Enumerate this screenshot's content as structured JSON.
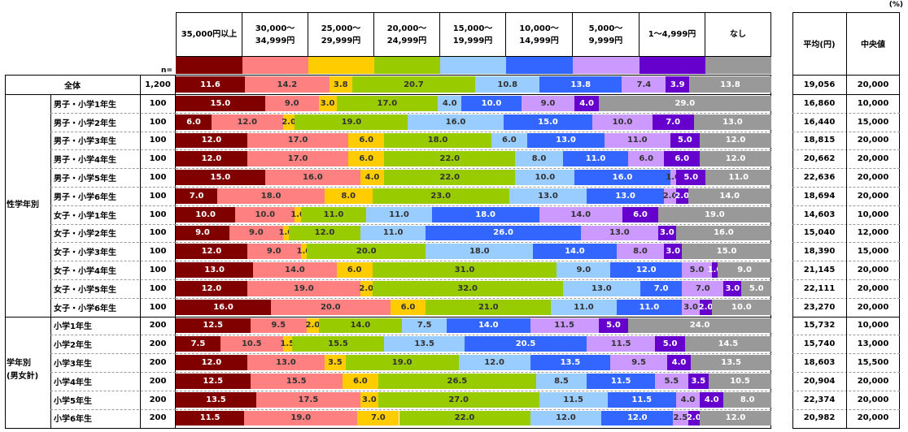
{
  "chart_data": {
    "type": "bar",
    "orientation": "horizontal-stacked-100",
    "unit_label": "(%)",
    "n_label": "n=",
    "categories_header": [
      "35,000円以上",
      "30,000〜\n34,999円",
      "25,000〜\n29,999円",
      "20,000〜\n24,999円",
      "15,000〜\n19,999円",
      "10,000〜\n14,999円",
      "5,000〜\n9,999円",
      "1〜4,999円",
      "なし"
    ],
    "colors": [
      "#800000",
      "#ff8080",
      "#ffcc00",
      "#99cc00",
      "#99ccff",
      "#3366ff",
      "#cc99ff",
      "#6600cc",
      "#999999"
    ],
    "label_colors": [
      "#ffffff",
      "#333333",
      "#333333",
      "#333333",
      "#333333",
      "#ffffff",
      "#333333",
      "#ffffff",
      "#ffffff"
    ],
    "stats_header": [
      "平均(円)",
      "中央値"
    ],
    "groups": [
      {
        "label": "",
        "span": 1
      },
      {
        "label": "性学年別",
        "span": 12
      },
      {
        "label": "学年別\n(男女計)",
        "span": 6
      }
    ],
    "rows": [
      {
        "label": "全体",
        "n": "1,200",
        "values": [
          11.6,
          14.2,
          3.8,
          20.7,
          10.8,
          13.8,
          7.4,
          3.9,
          13.8
        ],
        "mean": "19,056",
        "median": "20,000"
      },
      {
        "label": "男子・小学1年生",
        "n": "100",
        "values": [
          15.0,
          9.0,
          3.0,
          17.0,
          4.0,
          10.0,
          9.0,
          4.0,
          29.0
        ],
        "mean": "16,860",
        "median": "10,000"
      },
      {
        "label": "男子・小学2年生",
        "n": "100",
        "values": [
          6.0,
          12.0,
          2.0,
          19.0,
          16.0,
          15.0,
          10.0,
          7.0,
          13.0
        ],
        "mean": "16,440",
        "median": "15,000"
      },
      {
        "label": "男子・小学3年生",
        "n": "100",
        "values": [
          12.0,
          17.0,
          6.0,
          18.0,
          6.0,
          13.0,
          11.0,
          5.0,
          12.0
        ],
        "mean": "18,815",
        "median": "20,000"
      },
      {
        "label": "男子・小学4年生",
        "n": "100",
        "values": [
          12.0,
          17.0,
          6.0,
          22.0,
          8.0,
          11.0,
          6.0,
          6.0,
          12.0
        ],
        "mean": "20,662",
        "median": "20,000"
      },
      {
        "label": "男子・小学5年生",
        "n": "100",
        "values": [
          15.0,
          16.0,
          4.0,
          22.0,
          10.0,
          16.0,
          1.0,
          5.0,
          11.0
        ],
        "mean": "22,636",
        "median": "20,000"
      },
      {
        "label": "男子・小学6年生",
        "n": "100",
        "values": [
          7.0,
          18.0,
          8.0,
          23.0,
          13.0,
          13.0,
          2.0,
          2.0,
          14.0
        ],
        "mean": "18,694",
        "median": "20,000"
      },
      {
        "label": "女子・小学1年生",
        "n": "100",
        "values": [
          10.0,
          10.0,
          1.0,
          11.0,
          11.0,
          18.0,
          14.0,
          6.0,
          19.0
        ],
        "mean": "14,603",
        "median": "10,000"
      },
      {
        "label": "女子・小学2年生",
        "n": "100",
        "values": [
          9.0,
          9.0,
          1.0,
          12.0,
          11.0,
          26.0,
          13.0,
          3.0,
          16.0
        ],
        "mean": "15,040",
        "median": "12,000"
      },
      {
        "label": "女子・小学3年生",
        "n": "100",
        "values": [
          12.0,
          9.0,
          1.0,
          20.0,
          18.0,
          14.0,
          8.0,
          3.0,
          15.0
        ],
        "mean": "18,390",
        "median": "15,000"
      },
      {
        "label": "女子・小学4年生",
        "n": "100",
        "values": [
          13.0,
          14.0,
          6.0,
          31.0,
          9.0,
          12.0,
          5.0,
          1.0,
          9.0
        ],
        "mean": "21,145",
        "median": "20,000"
      },
      {
        "label": "女子・小学5年生",
        "n": "100",
        "values": [
          12.0,
          19.0,
          2.0,
          32.0,
          13.0,
          7.0,
          7.0,
          3.0,
          5.0
        ],
        "mean": "22,111",
        "median": "20,000"
      },
      {
        "label": "女子・小学6年生",
        "n": "100",
        "values": [
          16.0,
          20.0,
          6.0,
          21.0,
          11.0,
          11.0,
          3.0,
          2.0,
          10.0
        ],
        "mean": "23,270",
        "median": "20,000"
      },
      {
        "label": "小学1年生",
        "n": "200",
        "values": [
          12.5,
          9.5,
          2.0,
          14.0,
          7.5,
          14.0,
          11.5,
          5.0,
          24.0
        ],
        "mean": "15,732",
        "median": "10,000"
      },
      {
        "label": "小学2年生",
        "n": "200",
        "values": [
          7.5,
          10.5,
          1.5,
          15.5,
          13.5,
          20.5,
          11.5,
          5.0,
          14.5
        ],
        "mean": "15,740",
        "median": "13,000"
      },
      {
        "label": "小学3年生",
        "n": "200",
        "values": [
          12.0,
          13.0,
          3.5,
          19.0,
          12.0,
          13.5,
          9.5,
          4.0,
          13.5
        ],
        "mean": "18,603",
        "median": "15,500"
      },
      {
        "label": "小学4年生",
        "n": "200",
        "values": [
          12.5,
          15.5,
          6.0,
          26.5,
          8.5,
          11.5,
          5.5,
          3.5,
          10.5
        ],
        "mean": "20,904",
        "median": "20,000"
      },
      {
        "label": "小学5年生",
        "n": "200",
        "values": [
          13.5,
          17.5,
          3.0,
          27.0,
          11.5,
          11.5,
          4.0,
          4.0,
          8.0
        ],
        "mean": "22,374",
        "median": "20,000"
      },
      {
        "label": "小学6年生",
        "n": "200",
        "values": [
          11.5,
          19.0,
          7.0,
          22.0,
          12.0,
          12.0,
          2.5,
          2.0,
          12.0
        ],
        "mean": "20,982",
        "median": "20,000"
      }
    ],
    "xlim": [
      0,
      100
    ]
  }
}
